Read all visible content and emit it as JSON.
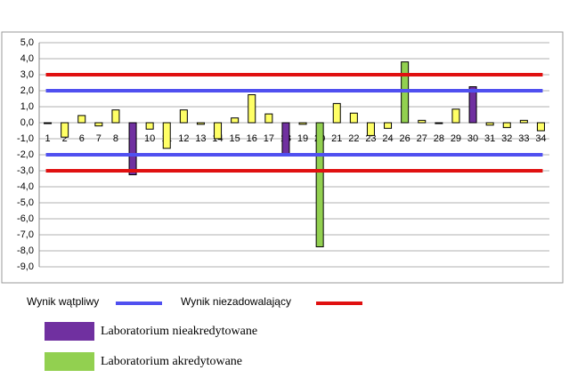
{
  "chart_data": {
    "type": "bar",
    "categories": [
      "1",
      "2",
      "6",
      "7",
      "8",
      "9",
      "10",
      "11",
      "12",
      "13",
      "14",
      "15",
      "16",
      "17",
      "18",
      "19",
      "20",
      "21",
      "22",
      "23",
      "24",
      "26",
      "27",
      "28",
      "29",
      "30",
      "31",
      "32",
      "33",
      "34"
    ],
    "values": [
      0,
      -0.9,
      0.45,
      -0.2,
      0.8,
      -3.25,
      -0.4,
      -1.6,
      0.8,
      -0.1,
      -1.0,
      0.3,
      1.75,
      0.55,
      -1.95,
      -0.1,
      -7.75,
      1.2,
      0.6,
      -0.8,
      -0.35,
      3.8,
      0.15,
      0,
      0.85,
      2.25,
      -0.15,
      -0.3,
      0.15,
      -0.5
    ],
    "colors": [
      "#ffff66",
      "#ffff66",
      "#ffff66",
      "#ffff66",
      "#ffff66",
      "#7030a0",
      "#ffff66",
      "#ffff66",
      "#ffff66",
      "#ffff66",
      "#ffff66",
      "#ffff66",
      "#ffff66",
      "#ffff66",
      "#7030a0",
      "#ffff66",
      "#92d050",
      "#ffff66",
      "#ffff66",
      "#ffff66",
      "#ffff66",
      "#92d050",
      "#ffff66",
      "#ffff66",
      "#ffff66",
      "#7030a0",
      "#ffff66",
      "#ffff66",
      "#ffff66",
      "#ffff66"
    ],
    "ylim": [
      -9,
      5
    ],
    "yticks": [
      {
        "value": 5,
        "label": "5,0"
      },
      {
        "value": 4,
        "label": "4,0"
      },
      {
        "value": 3,
        "label": "3,0"
      },
      {
        "value": 2,
        "label": "2,0"
      },
      {
        "value": 1,
        "label": "1,0"
      },
      {
        "value": 0,
        "label": "0,0"
      },
      {
        "value": -1,
        "label": "-1,0"
      },
      {
        "value": -2,
        "label": "-2,0"
      },
      {
        "value": -3,
        "label": "-3,0"
      },
      {
        "value": -4,
        "label": "-4,0"
      },
      {
        "value": -5,
        "label": "-5,0"
      },
      {
        "value": -6,
        "label": "-6,0"
      },
      {
        "value": -7,
        "label": "-7,0"
      },
      {
        "value": -8,
        "label": "-8,0"
      },
      {
        "value": -9,
        "label": "-9,0"
      }
    ],
    "grid": true,
    "reference_lines": [
      {
        "name": "Wynik wątpliwy",
        "color": "#5050f0",
        "values": [
          2,
          -2
        ]
      },
      {
        "name": "Wynik niezadowalający",
        "color": "#e01010",
        "values": [
          3,
          -3
        ]
      }
    ],
    "category_legend": [
      {
        "name": "Laboratorium nieakredytowane",
        "color": "#7030a0"
      },
      {
        "name": "Laboratorium akredytowane",
        "color": "#92d050"
      }
    ]
  }
}
